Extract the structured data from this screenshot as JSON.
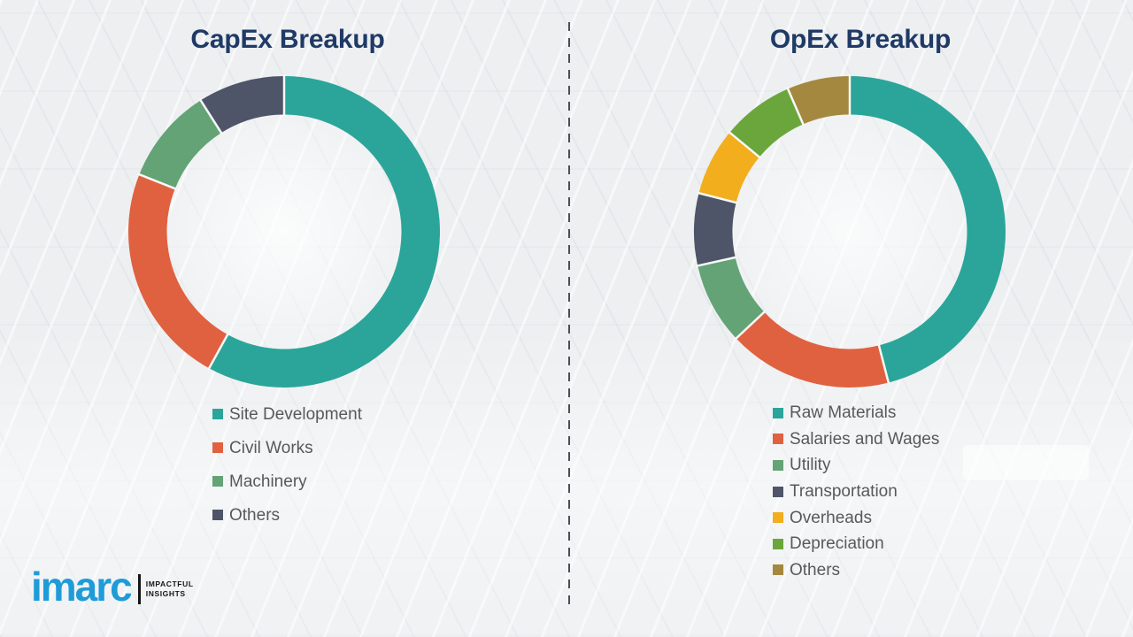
{
  "theme": {
    "background": "#EDEFF1",
    "title_color": "#203A66",
    "legend_text_color": "#595959",
    "divider_color": "#4A4F57",
    "segment_gap_color": "#F7F8F7",
    "logo_blue": "#1E9CD8"
  },
  "divider": {
    "style": "vertical dashed line"
  },
  "branding": {
    "logo_text": "imarc",
    "tagline_line1": "IMPACTFUL",
    "tagline_line2": "INSIGHTS"
  },
  "chart_data": [
    {
      "type": "pie",
      "variant": "donut",
      "title": "CapEx Breakup",
      "start_angle_deg": 0,
      "direction": "clockwise",
      "donut_hole_ratio": 0.75,
      "legend_position": "below-left",
      "labels": [
        "Site Development",
        "Civil Works",
        "Machinery",
        "Others"
      ],
      "values": [
        58,
        23,
        10,
        9
      ],
      "colors": [
        "#2BA59A",
        "#E0613F",
        "#63A376",
        "#4E5568"
      ]
    },
    {
      "type": "pie",
      "variant": "donut",
      "title": "OpEx Breakup",
      "start_angle_deg": 0,
      "direction": "clockwise",
      "donut_hole_ratio": 0.75,
      "legend_position": "below-left",
      "labels": [
        "Raw Materials",
        "Salaries and Wages",
        "Utility",
        "Transportation",
        "Overheads",
        "Depreciation",
        "Others"
      ],
      "values": [
        46,
        17,
        8.5,
        7.5,
        7,
        7.5,
        6.5
      ],
      "colors": [
        "#2BA59A",
        "#E0613F",
        "#63A376",
        "#4E5568",
        "#F2AE1D",
        "#6BA63C",
        "#A4883F"
      ]
    }
  ]
}
